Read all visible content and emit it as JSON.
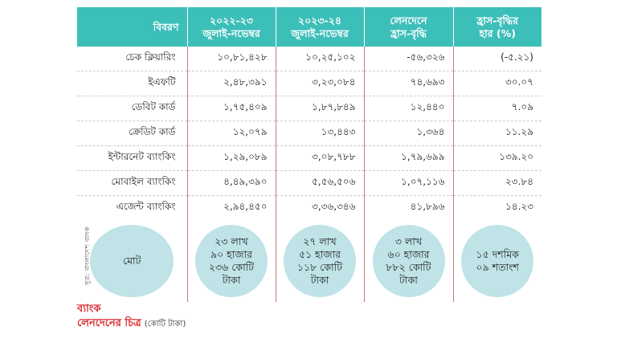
{
  "header": {
    "col0": "বিবরণ",
    "col1_line1": "২০২২-২৩",
    "col1_line2": "জুলাই-নভেম্বর",
    "col2_line1": "২০২৩-২৪",
    "col2_line2": "জুলাই-নভেম্বর",
    "col3_line1": "লেনদেনে",
    "col3_line2": "হ্রাস-বৃদ্ধি",
    "col4_line1": "হ্রাস-বৃদ্ধির",
    "col4_line2": "হার (%)"
  },
  "rows": [
    {
      "label": "চেক ক্লিয়ারিং",
      "v1": "১০,৮১,৪২৮",
      "v2": "১০,২৫,১০২",
      "v3": "-৫৬,৩২৬",
      "v4": "(-৫.২১)"
    },
    {
      "label": "ইএফটি",
      "v1": "২,৪৮,৩৯১",
      "v2": "৩,২৩,০৮৪",
      "v3": "৭৪,৬৯৩",
      "v4": "৩০.০৭"
    },
    {
      "label": "ডেবিট কার্ড",
      "v1": "১,৭৫,৪০৯",
      "v2": "১,৮৭,৮৪৯",
      "v3": "১২,৪৪০",
      "v4": "৭.০৯"
    },
    {
      "label": "ক্রেডিট কার্ড",
      "v1": "১২,০৭৯",
      "v2": "১৩,৪৪৩",
      "v3": "১,৩৬৪",
      "v4": "১১.২৯"
    },
    {
      "label": "ইন্টারনেট ব্যাংকিং",
      "v1": "১,২৯,০৮৯",
      "v2": "৩,০৮,৭৮৮",
      "v3": "১,৭৯,৬৯৯",
      "v4": "১৩৯.২০"
    },
    {
      "label": "মোবাইল ব্যাংকিং",
      "v1": "৪,৪৯,৩৯০",
      "v2": "৫,৫৬,৫০৬",
      "v3": "১,০৭,১১৬",
      "v4": "২৩.৮৪"
    },
    {
      "label": "এজেন্ট ব্যাংকিং",
      "v1": "২,৯৪,৪৫০",
      "v2": "৩,৩৬,৩৪৬",
      "v3": "৪১,৮৯৬",
      "v4": "১৪.২৩"
    }
  ],
  "totals": {
    "label": "মোট",
    "t1_line1": "২৩ লাখ",
    "t1_line2": "৯০ হাজার",
    "t1_line3": "২৩৬ কোটি",
    "t1_line4": "টাকা",
    "t2_line1": "২৭ লাখ",
    "t2_line2": "৫১ হাজার",
    "t2_line3": "১১৮ কোটি",
    "t2_line4": "টাকা",
    "t3_line1": "৩ লাখ",
    "t3_line2": "৬০ হাজার",
    "t3_line3": "৮৮২ কোটি",
    "t3_line4": "টাকা",
    "t4_line1": "১৫ দশমিক",
    "t4_line2": "০৯ শতাংশ"
  },
  "source": "সূত্র: বাংলাদেশ ব্যাংক",
  "caption": {
    "line1": "ব্যাংক",
    "line2": "লেনদেনের চিত্র",
    "unit": "(কোটি টাকা)"
  },
  "colors": {
    "header_bg": "#3dbfb9",
    "circle_bg": "#bfe3e7",
    "title_red": "#d9262c"
  }
}
